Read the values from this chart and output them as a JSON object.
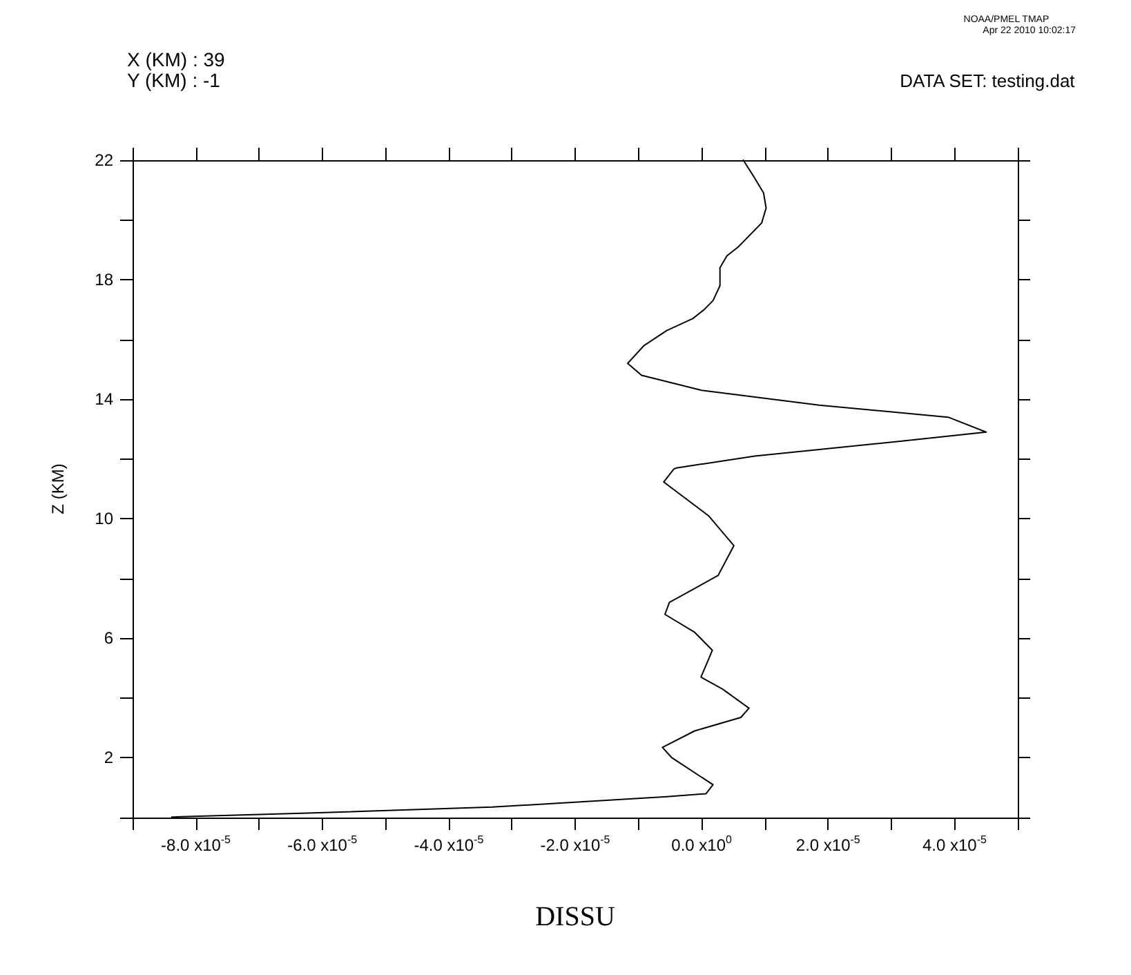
{
  "chart_data": {
    "type": "line",
    "xlabel": "DISSU",
    "ylabel": "Z (KM)",
    "annotations": [
      "X (KM) : 39",
      "Y (KM) : -1",
      "DATA SET: testing.dat",
      "NOAA/PMEL TMAP",
      "Apr 22 2010 10:02:17"
    ],
    "x": [
      6.6e-06,
      8.4e-06,
      9.8e-06,
      1.02e-05,
      9.5e-06,
      5.8e-06,
      4e-06,
      2.9e-06,
      2.9e-06,
      1.8e-06,
      4e-07,
      -1.4e-06,
      -5.5e-06,
      -9.1e-06,
      -1.17e-05,
      -9.5e-06,
      0.0,
      1.86e-05,
      3.9e-05,
      4.5e-05,
      3.17e-05,
      8.4e-06,
      -4e-06,
      -4.4e-06,
      -6e-06,
      1.1e-06,
      5.1e-06,
      2.6e-06,
      -5.1e-06,
      -5.8e-06,
      -1.1e-06,
      1.7e-06,
      -1e-07,
      3.3e-06,
      7.5e-06,
      6.2e-06,
      -1.1e-06,
      -6.2e-06,
      -4.7e-06,
      1.8e-06,
      7e-07,
      -5.5e-06,
      -3.31e-05,
      -6.23e-05,
      -8.38e-05
    ],
    "values": [
      22.0,
      21.4,
      20.9,
      20.4,
      19.9,
      19.1,
      18.8,
      18.4,
      17.8,
      17.3,
      17.0,
      16.7,
      16.3,
      15.8,
      15.2,
      14.8,
      14.3,
      13.8,
      13.4,
      12.9,
      12.6,
      12.1,
      11.7,
      11.66,
      11.23,
      10.1,
      9.1,
      8.1,
      7.2,
      6.8,
      6.2,
      5.6,
      4.7,
      4.3,
      3.66,
      3.35,
      2.9,
      2.35,
      2.0,
      1.1,
      0.8,
      0.7,
      0.35,
      0.15,
      0.02
    ],
    "color": "#000000",
    "marker": "none",
    "line_style": "solid",
    "grid": false,
    "xlim": [
      -9e-05,
      5e-05
    ],
    "xticks": [
      {
        "value": -9e-05,
        "label": null
      },
      {
        "value": -8e-05,
        "label": "-8.0 x10$^{-5}$"
      },
      {
        "value": -7e-05,
        "label": null
      },
      {
        "value": -6e-05,
        "label": "-6.0 x10$^{-5}$"
      },
      {
        "value": -5e-05,
        "label": null
      },
      {
        "value": -4e-05,
        "label": "-4.0 x10$^{-5}$"
      },
      {
        "value": -3e-05,
        "label": null
      },
      {
        "value": -2e-05,
        "label": "-2.0 x10$^{-5}$"
      },
      {
        "value": -1e-05,
        "label": null
      },
      {
        "value": 0,
        "label": "0.0 x10$^{0}$"
      },
      {
        "value": 1e-05,
        "label": null
      },
      {
        "value": 2e-05,
        "label": "2.0 x10$^{-5}$"
      },
      {
        "value": 3e-05,
        "label": null
      },
      {
        "value": 4e-05,
        "label": "4.0 x10$^{-5}$"
      },
      {
        "value": 5e-05,
        "label": null
      }
    ],
    "ylim": [
      0,
      22
    ],
    "yticks": [
      {
        "value": 0,
        "label": null
      },
      2,
      {
        "value": 4,
        "label": null
      },
      6,
      {
        "value": 8,
        "label": null
      },
      10,
      {
        "value": 12,
        "label": null
      },
      14,
      {
        "value": 16,
        "label": null
      },
      18,
      {
        "value": 20,
        "label": null
      },
      22
    ]
  }
}
